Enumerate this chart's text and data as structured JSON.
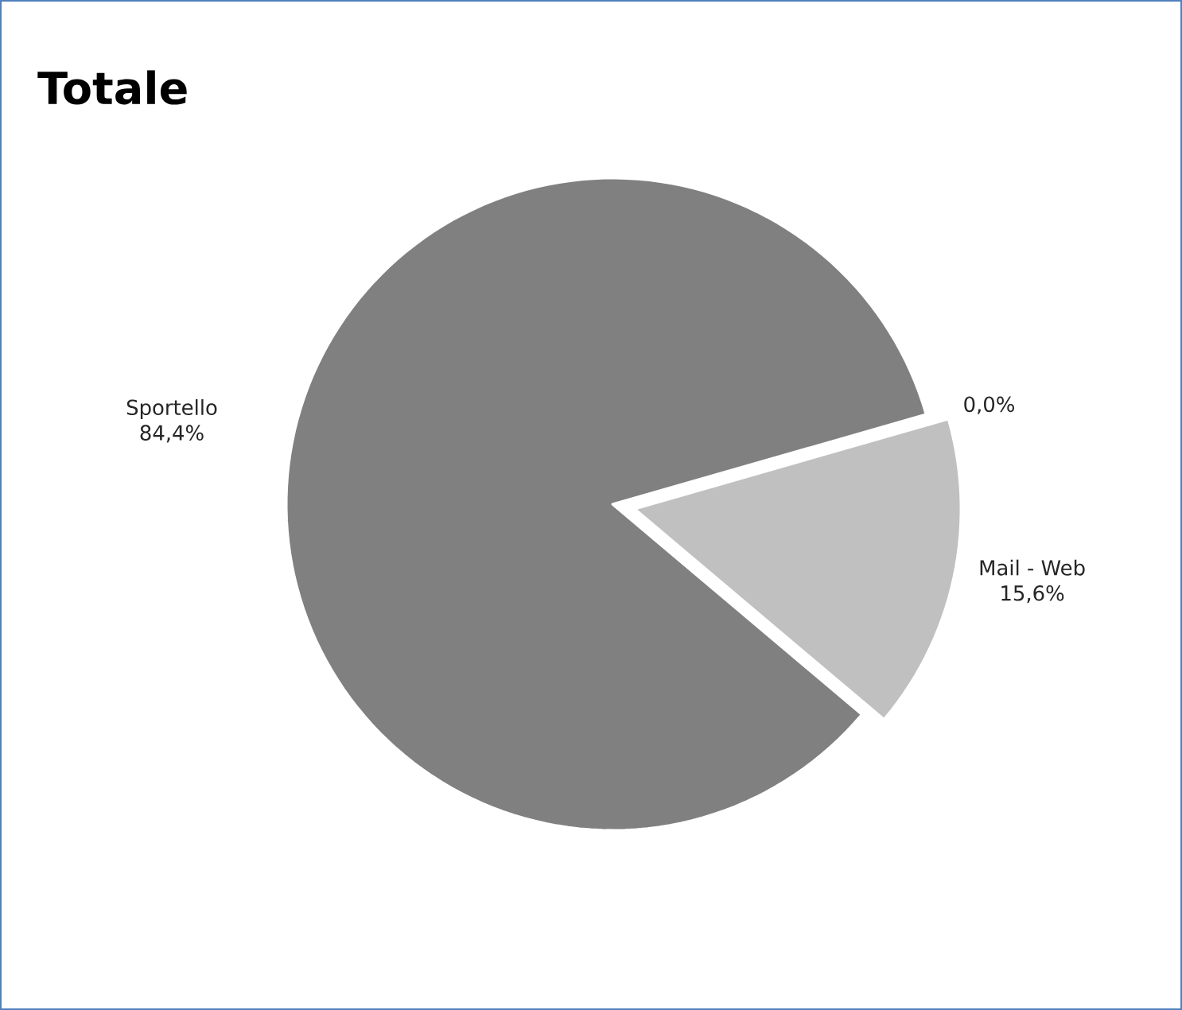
{
  "chart_data": {
    "type": "pie",
    "title": "Totale",
    "categories": [
      "Sportello",
      null,
      "Mail - Web"
    ],
    "values": [
      84.4,
      0.0,
      15.6
    ],
    "value_labels": [
      "84,4%",
      "0,0%",
      "15,6%"
    ],
    "colors": [
      "#808080",
      "#a0a0a0",
      "#c0c0c0"
    ]
  }
}
